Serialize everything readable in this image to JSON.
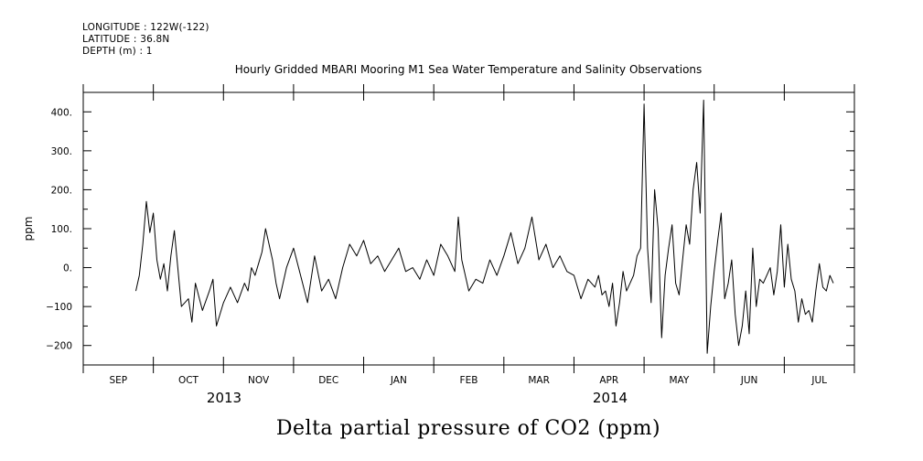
{
  "header": {
    "longitude": "LONGITUDE : 122W(-122)",
    "latitude": "LATITUDE : 36.8N",
    "depth": "DEPTH (m) : 1"
  },
  "chart_data": {
    "type": "line",
    "title": "Hourly Gridded MBARI Mooring M1 Sea Water Temperature and Salinity Observations",
    "xlabel": "Delta partial pressure of CO2 (ppm)",
    "ylabel": "ppm",
    "ylim": [
      -250,
      450
    ],
    "yticks": [
      -200,
      -100,
      0,
      100,
      200,
      300,
      400
    ],
    "ytick_labels": [
      "−200",
      "−100",
      "0.",
      "100.",
      "200.",
      "300.",
      "400."
    ],
    "xlim": [
      0,
      11
    ],
    "x_unit": "months since 2013-08-20 (approx.)",
    "month_labels": [
      "SEP",
      "OCT",
      "NOV",
      "DEC",
      "JAN",
      "FEB",
      "MAR",
      "APR",
      "MAY",
      "JUN",
      "JUL"
    ],
    "year_labels": [
      "2013",
      "2014"
    ],
    "series": [
      {
        "name": "Delta partial pressure of CO2",
        "x": [
          0.75,
          0.8,
          0.85,
          0.9,
          0.95,
          1.0,
          1.05,
          1.1,
          1.15,
          1.2,
          1.25,
          1.3,
          1.4,
          1.5,
          1.55,
          1.6,
          1.7,
          1.8,
          1.85,
          1.9,
          2.0,
          2.1,
          2.2,
          2.3,
          2.35,
          2.4,
          2.45,
          2.5,
          2.55,
          2.6,
          2.65,
          2.7,
          2.75,
          2.8,
          2.9,
          3.0,
          3.1,
          3.2,
          3.3,
          3.4,
          3.5,
          3.6,
          3.7,
          3.8,
          3.9,
          4.0,
          4.1,
          4.2,
          4.3,
          4.4,
          4.5,
          4.6,
          4.7,
          4.8,
          4.9,
          5.0,
          5.1,
          5.2,
          5.3,
          5.35,
          5.4,
          5.5,
          5.6,
          5.7,
          5.8,
          5.9,
          6.0,
          6.1,
          6.2,
          6.3,
          6.4,
          6.5,
          6.6,
          6.7,
          6.8,
          6.9,
          7.0,
          7.1,
          7.2,
          7.3,
          7.35,
          7.4,
          7.45,
          7.5,
          7.55,
          7.6,
          7.65,
          7.7,
          7.75,
          7.8,
          7.85,
          7.9,
          7.95,
          8.0,
          8.05,
          8.1,
          8.15,
          8.2,
          8.25,
          8.3,
          8.35,
          8.4,
          8.45,
          8.5,
          8.55,
          8.6,
          8.65,
          8.7,
          8.75,
          8.8,
          8.85,
          8.9,
          8.95,
          9.0,
          9.05,
          9.1,
          9.15,
          9.2,
          9.25,
          9.3,
          9.35,
          9.4,
          9.45,
          9.5,
          9.55,
          9.6,
          9.65,
          9.7,
          9.75,
          9.8,
          9.85,
          9.9,
          9.95,
          10.0,
          10.05,
          10.1,
          10.15,
          10.2,
          10.25,
          10.3,
          10.35,
          10.4,
          10.45,
          10.5,
          10.55,
          10.6,
          10.65,
          10.7
        ],
        "values": [
          -60,
          -20,
          60,
          170,
          90,
          140,
          20,
          -30,
          10,
          -60,
          30,
          95,
          -100,
          -80,
          -140,
          -40,
          -110,
          -60,
          -30,
          -150,
          -90,
          -50,
          -90,
          -40,
          -60,
          0,
          -20,
          10,
          40,
          100,
          60,
          20,
          -40,
          -80,
          0,
          50,
          -20,
          -90,
          30,
          -60,
          -30,
          -80,
          0,
          60,
          30,
          70,
          10,
          30,
          -10,
          20,
          50,
          -10,
          0,
          -30,
          20,
          -20,
          60,
          30,
          -10,
          130,
          20,
          -60,
          -30,
          -40,
          20,
          -20,
          30,
          90,
          10,
          50,
          130,
          20,
          60,
          0,
          30,
          -10,
          -20,
          -80,
          -30,
          -50,
          -20,
          -70,
          -60,
          -100,
          -40,
          -150,
          -90,
          -10,
          -60,
          -40,
          -20,
          30,
          50,
          420,
          50,
          -90,
          200,
          100,
          -180,
          -20,
          50,
          110,
          -40,
          -70,
          20,
          110,
          60,
          200,
          270,
          140,
          430,
          -220,
          -100,
          -10,
          70,
          140,
          -80,
          -40,
          20,
          -120,
          -200,
          -150,
          -60,
          -170,
          50,
          -100,
          -30,
          -40,
          -20,
          0,
          -70,
          -10,
          110,
          -50,
          60,
          -30,
          -60,
          -140,
          -80,
          -120,
          -110,
          -140,
          -60,
          10,
          -50,
          -60,
          -20,
          -40
        ]
      }
    ]
  }
}
